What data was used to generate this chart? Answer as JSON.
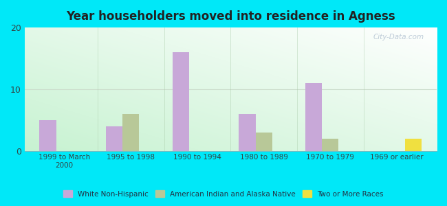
{
  "title": "Year householders moved into residence in Agness",
  "categories": [
    "1999 to March\n2000",
    "1995 to 1998",
    "1990 to 1994",
    "1980 to 1989",
    "1970 to 1979",
    "1969 or earlier"
  ],
  "white_non_hispanic": [
    5,
    4,
    16,
    6,
    11,
    0
  ],
  "american_indian": [
    0,
    6,
    0,
    3,
    2,
    0
  ],
  "two_or_more": [
    0,
    0,
    0,
    0,
    0,
    2
  ],
  "bar_color_white": "#c8a8d8",
  "bar_color_indian": "#b8c898",
  "bar_color_two": "#f0e040",
  "bg_color": "#00e8f8",
  "ylim": [
    0,
    20
  ],
  "yticks": [
    0,
    10,
    20
  ],
  "bar_width": 0.25,
  "legend_labels": [
    "White Non-Hispanic",
    "American Indian and Alaska Native",
    "Two or More Races"
  ],
  "watermark": "City-Data.com"
}
